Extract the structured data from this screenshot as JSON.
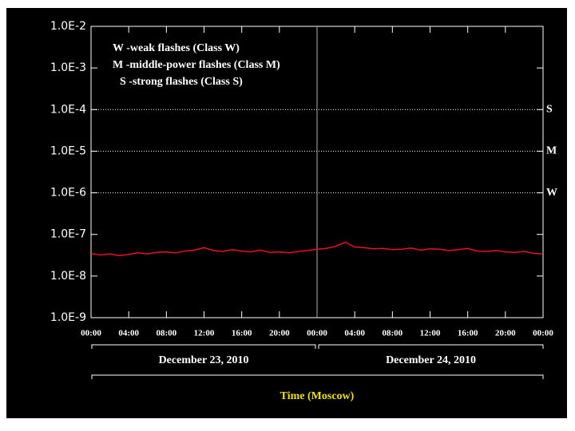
{
  "chart_data": {
    "type": "line",
    "log_scale": true,
    "x": [
      0,
      1,
      2,
      3,
      4,
      5,
      6,
      7,
      8,
      9,
      10,
      11,
      12,
      13,
      14,
      15,
      16,
      17,
      18,
      19,
      20,
      21,
      22,
      23,
      24,
      25,
      26,
      27,
      28,
      29,
      30,
      31,
      32,
      33,
      34,
      35,
      36,
      37,
      38,
      39,
      40,
      41,
      42,
      43,
      44,
      45,
      46,
      47,
      48
    ],
    "series": [
      {
        "color": "#e8102a",
        "values": [
          3.5e-08,
          3.2e-08,
          3.4e-08,
          3.1e-08,
          3.3e-08,
          3.6e-08,
          3.4e-08,
          3.7e-08,
          3.8e-08,
          3.6e-08,
          4e-08,
          4.2e-08,
          4.8e-08,
          4.1e-08,
          3.9e-08,
          4.3e-08,
          4e-08,
          3.8e-08,
          4.2e-08,
          3.7e-08,
          3.8e-08,
          3.6e-08,
          3.9e-08,
          4.1e-08,
          4.4e-08,
          4.6e-08,
          5.2e-08,
          6.5e-08,
          5e-08,
          4.8e-08,
          4.5e-08,
          4.6e-08,
          4.3e-08,
          4.4e-08,
          4.7e-08,
          4.2e-08,
          4.5e-08,
          4.4e-08,
          4.1e-08,
          4.3e-08,
          4.6e-08,
          4e-08,
          3.9e-08,
          4.1e-08,
          3.8e-08,
          3.7e-08,
          3.9e-08,
          3.5e-08,
          3.4e-08
        ]
      }
    ],
    "ylim": [
      1e-09,
      0.01
    ],
    "yticks": [
      {
        "value": 1e-09,
        "label": "1.0E-9"
      },
      {
        "value": 1e-08,
        "label": "1.0E-8"
      },
      {
        "value": 1e-07,
        "label": "1.0E-7"
      },
      {
        "value": 1e-06,
        "label": "1.0E-6"
      },
      {
        "value": 1e-05,
        "label": "1.0E-5"
      },
      {
        "value": 0.0001,
        "label": "1.0E-4"
      },
      {
        "value": 0.001,
        "label": "1.0E-3"
      },
      {
        "value": 0.01,
        "label": "1.0E-2"
      }
    ],
    "xlim": [
      0,
      48
    ],
    "xticks": [
      {
        "value": 0,
        "label": "00:00"
      },
      {
        "value": 4,
        "label": "04:00"
      },
      {
        "value": 8,
        "label": "08:00"
      },
      {
        "value": 12,
        "label": "12:00"
      },
      {
        "value": 16,
        "label": "16:00"
      },
      {
        "value": 20,
        "label": "20:00"
      },
      {
        "value": 24,
        "label": "00:00"
      },
      {
        "value": 28,
        "label": "04:00"
      },
      {
        "value": 32,
        "label": "08:00"
      },
      {
        "value": 36,
        "label": "12:00"
      },
      {
        "value": 40,
        "label": "16:00"
      },
      {
        "value": 44,
        "label": "20:00"
      },
      {
        "value": 48,
        "label": "00:00"
      }
    ],
    "day_boundary": 24,
    "date_labels": [
      "December 23, 2010",
      "December 24, 2010"
    ],
    "x_label": "Time (Moscow)",
    "reference_lines": [
      {
        "value": 0.0001,
        "label": "S"
      },
      {
        "value": 1e-05,
        "label": "M"
      },
      {
        "value": 1e-06,
        "label": "W"
      }
    ],
    "annotations": [
      "W -weak flashes (Class W)",
      "M -middle-power flashes (Class M)",
      "S -strong flashes (Class S)"
    ]
  }
}
